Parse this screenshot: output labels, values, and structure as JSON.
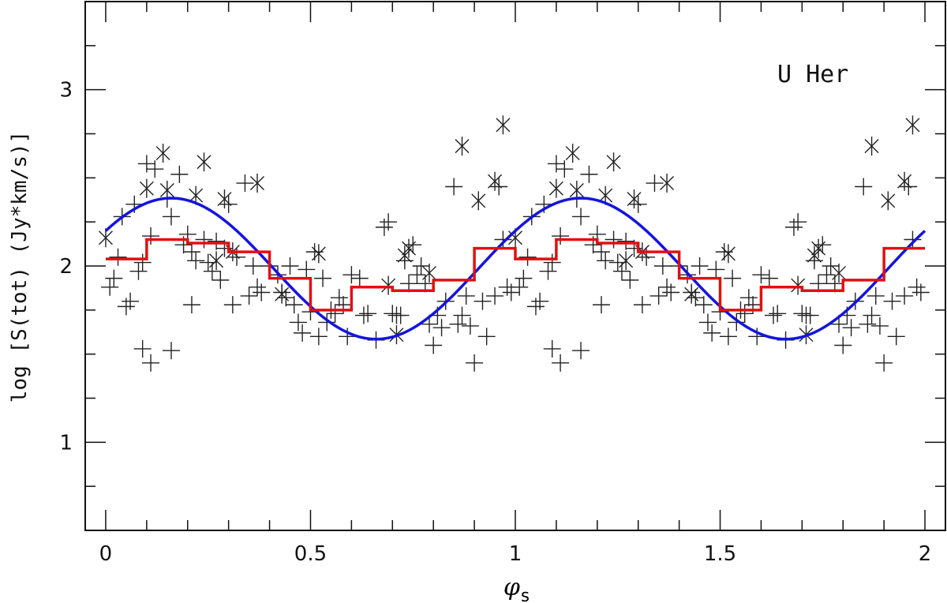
{
  "chart_data": {
    "type": "scatter",
    "title": "",
    "annotation": "U Her",
    "xlabel_symbol": "φ",
    "xlabel_sub": "s",
    "ylabel": "log [S(tot) (Jy*km/s)]",
    "xlim": [
      -0.05,
      2.05
    ],
    "ylim": [
      0.5,
      3.5
    ],
    "x_ticks": [
      0,
      0.5,
      1,
      1.5,
      2
    ],
    "x_tick_labels": [
      "0",
      "0.5",
      "1",
      "1.5",
      "2"
    ],
    "y_ticks": [
      1,
      2,
      3
    ],
    "y_tick_labels": [
      "1",
      "2",
      "3"
    ],
    "grid": false,
    "colors": {
      "points": "#222222",
      "sine": "#1414e0",
      "binned": "#e01010",
      "axes": "#111111"
    },
    "series": [
      {
        "marker": "plus",
        "points": [
          [
            0.01,
            1.88
          ],
          [
            0.02,
            1.93
          ],
          [
            0.03,
            2.05
          ],
          [
            0.04,
            2.28
          ],
          [
            0.05,
            1.77
          ],
          [
            0.06,
            1.8
          ],
          [
            0.07,
            2.35
          ],
          [
            0.08,
            1.97
          ],
          [
            0.09,
            2.02
          ],
          [
            0.1,
            2.58
          ],
          [
            0.11,
            2.17
          ],
          [
            0.12,
            2.55
          ],
          [
            0.15,
            2.38
          ],
          [
            0.16,
            2.28
          ],
          [
            0.18,
            2.52
          ],
          [
            0.19,
            2.12
          ],
          [
            0.2,
            2.18
          ],
          [
            0.21,
            2.08
          ],
          [
            0.22,
            2.03
          ],
          [
            0.24,
            2.15
          ],
          [
            0.25,
            2.02
          ],
          [
            0.26,
            1.97
          ],
          [
            0.27,
            2.14
          ],
          [
            0.28,
            1.92
          ],
          [
            0.29,
            2.1
          ],
          [
            0.3,
            2.35
          ],
          [
            0.32,
            2.05
          ],
          [
            0.35,
            1.83
          ],
          [
            0.36,
            2.0
          ],
          [
            0.37,
            1.88
          ],
          [
            0.4,
            2.0
          ],
          [
            0.42,
            1.95
          ],
          [
            0.44,
            1.82
          ],
          [
            0.46,
            1.78
          ],
          [
            0.47,
            1.68
          ],
          [
            0.48,
            1.62
          ],
          [
            0.49,
            1.98
          ],
          [
            0.5,
            1.74
          ],
          [
            0.51,
            2.08
          ],
          [
            0.52,
            1.6
          ],
          [
            0.54,
            1.68
          ],
          [
            0.55,
            1.75
          ],
          [
            0.56,
            1.73
          ],
          [
            0.57,
            1.82
          ],
          [
            0.58,
            1.78
          ],
          [
            0.59,
            1.6
          ],
          [
            0.6,
            1.95
          ],
          [
            0.62,
            1.93
          ],
          [
            0.64,
            1.73
          ],
          [
            0.66,
            1.58
          ],
          [
            0.68,
            2.22
          ],
          [
            0.69,
            2.25
          ],
          [
            0.7,
            1.73
          ],
          [
            0.71,
            1.72
          ],
          [
            0.72,
            1.72
          ],
          [
            0.73,
            2.03
          ],
          [
            0.75,
            2.12
          ],
          [
            0.76,
            1.95
          ],
          [
            0.77,
            2.0
          ],
          [
            0.78,
            1.9
          ],
          [
            0.79,
            1.67
          ],
          [
            0.8,
            1.55
          ],
          [
            0.81,
            1.72
          ],
          [
            0.83,
            1.8
          ],
          [
            0.85,
            2.45
          ],
          [
            0.86,
            1.67
          ],
          [
            0.87,
            1.72
          ],
          [
            0.88,
            1.83
          ],
          [
            0.89,
            1.66
          ],
          [
            0.9,
            1.45
          ],
          [
            0.92,
            1.8
          ],
          [
            0.93,
            1.6
          ],
          [
            0.95,
            1.83
          ],
          [
            0.97,
            2.15
          ],
          [
            0.98,
            1.88
          ],
          [
            0.99,
            1.85
          ],
          [
            1.01,
            1.88
          ],
          [
            1.02,
            1.93
          ],
          [
            1.03,
            2.05
          ],
          [
            1.04,
            2.28
          ],
          [
            1.05,
            1.77
          ],
          [
            1.06,
            1.8
          ],
          [
            1.07,
            2.35
          ],
          [
            1.08,
            1.97
          ],
          [
            1.09,
            2.02
          ],
          [
            1.1,
            2.58
          ],
          [
            1.11,
            2.17
          ],
          [
            1.12,
            2.55
          ],
          [
            1.15,
            2.38
          ],
          [
            1.16,
            2.28
          ],
          [
            1.18,
            2.52
          ],
          [
            1.19,
            2.12
          ],
          [
            1.2,
            2.18
          ],
          [
            1.21,
            2.08
          ],
          [
            1.22,
            2.03
          ],
          [
            1.24,
            2.15
          ],
          [
            1.25,
            2.02
          ],
          [
            1.26,
            1.97
          ],
          [
            1.27,
            2.14
          ],
          [
            1.28,
            1.92
          ],
          [
            1.29,
            2.1
          ],
          [
            1.3,
            2.35
          ],
          [
            1.32,
            2.05
          ],
          [
            1.35,
            1.83
          ],
          [
            1.36,
            2.0
          ],
          [
            1.37,
            1.88
          ],
          [
            1.4,
            2.0
          ],
          [
            1.42,
            1.95
          ],
          [
            1.44,
            1.82
          ],
          [
            1.46,
            1.78
          ],
          [
            1.47,
            1.68
          ],
          [
            1.48,
            1.62
          ],
          [
            1.49,
            1.98
          ],
          [
            1.5,
            1.74
          ],
          [
            1.51,
            2.08
          ],
          [
            1.52,
            1.6
          ],
          [
            1.54,
            1.68
          ],
          [
            1.55,
            1.75
          ],
          [
            1.56,
            1.73
          ],
          [
            1.57,
            1.82
          ],
          [
            1.58,
            1.78
          ],
          [
            1.59,
            1.6
          ],
          [
            1.6,
            1.95
          ],
          [
            1.62,
            1.93
          ],
          [
            1.64,
            1.73
          ],
          [
            1.66,
            1.58
          ],
          [
            1.68,
            2.22
          ],
          [
            1.69,
            2.25
          ],
          [
            1.7,
            1.73
          ],
          [
            1.71,
            1.72
          ],
          [
            1.72,
            1.72
          ],
          [
            1.73,
            2.03
          ],
          [
            1.75,
            2.12
          ],
          [
            1.76,
            1.95
          ],
          [
            1.77,
            2.0
          ],
          [
            1.78,
            1.9
          ],
          [
            1.79,
            1.67
          ],
          [
            1.8,
            1.55
          ],
          [
            1.81,
            1.72
          ],
          [
            1.83,
            1.8
          ],
          [
            1.85,
            2.45
          ],
          [
            1.86,
            1.67
          ],
          [
            1.87,
            1.72
          ],
          [
            1.88,
            1.83
          ],
          [
            1.89,
            1.66
          ],
          [
            1.9,
            1.45
          ],
          [
            1.92,
            1.8
          ],
          [
            1.93,
            1.6
          ],
          [
            1.95,
            1.83
          ],
          [
            1.97,
            2.15
          ],
          [
            1.98,
            1.88
          ],
          [
            1.99,
            1.85
          ],
          [
            0.09,
            1.53
          ],
          [
            0.11,
            1.45
          ],
          [
            0.16,
            1.52
          ],
          [
            0.21,
            1.78
          ],
          [
            0.31,
            1.78
          ],
          [
            0.34,
            2.47
          ],
          [
            0.38,
            1.85
          ],
          [
            0.43,
            1.85
          ],
          [
            0.45,
            2.0
          ],
          [
            0.53,
            1.93
          ],
          [
            0.63,
            1.72
          ],
          [
            0.74,
            1.9
          ],
          [
            0.82,
            1.65
          ],
          [
            0.96,
            2.45
          ],
          [
            1.09,
            1.53
          ],
          [
            1.11,
            1.45
          ],
          [
            1.16,
            1.52
          ],
          [
            1.21,
            1.78
          ],
          [
            1.31,
            1.78
          ],
          [
            1.34,
            2.47
          ],
          [
            1.38,
            1.85
          ],
          [
            1.43,
            1.85
          ],
          [
            1.45,
            2.0
          ],
          [
            1.53,
            1.93
          ],
          [
            1.63,
            1.72
          ],
          [
            1.74,
            1.9
          ],
          [
            1.82,
            1.65
          ],
          [
            1.96,
            2.45
          ]
        ]
      },
      {
        "marker": "asterisk",
        "points": [
          [
            0.0,
            2.16
          ],
          [
            0.1,
            2.44
          ],
          [
            0.14,
            2.64
          ],
          [
            0.15,
            2.43
          ],
          [
            0.22,
            2.4
          ],
          [
            0.24,
            2.59
          ],
          [
            0.27,
            2.03
          ],
          [
            0.29,
            2.38
          ],
          [
            0.31,
            2.08
          ],
          [
            0.37,
            2.47
          ],
          [
            0.43,
            1.84
          ],
          [
            0.52,
            2.07
          ],
          [
            0.69,
            1.89
          ],
          [
            0.71,
            1.61
          ],
          [
            0.73,
            2.06
          ],
          [
            0.74,
            2.1
          ],
          [
            0.79,
            1.96
          ],
          [
            0.87,
            2.68
          ],
          [
            0.91,
            2.37
          ],
          [
            0.95,
            2.48
          ],
          [
            0.97,
            2.8
          ],
          [
            1.0,
            2.16
          ],
          [
            1.1,
            2.44
          ],
          [
            1.14,
            2.64
          ],
          [
            1.15,
            2.43
          ],
          [
            1.22,
            2.4
          ],
          [
            1.24,
            2.59
          ],
          [
            1.27,
            2.03
          ],
          [
            1.29,
            2.38
          ],
          [
            1.31,
            2.08
          ],
          [
            1.37,
            2.47
          ],
          [
            1.43,
            1.84
          ],
          [
            1.52,
            2.07
          ],
          [
            1.69,
            1.89
          ],
          [
            1.71,
            1.61
          ],
          [
            1.73,
            2.06
          ],
          [
            1.74,
            2.1
          ],
          [
            1.79,
            1.96
          ],
          [
            1.87,
            2.68
          ],
          [
            1.91,
            2.37
          ],
          [
            1.95,
            2.48
          ],
          [
            1.97,
            2.8
          ]
        ]
      },
      {
        "type": "line",
        "model": "sine",
        "mean": 1.985,
        "amplitude": 0.4,
        "phase_of_max": 0.16,
        "x_range": [
          0,
          2
        ]
      },
      {
        "type": "step",
        "bins": [
          [
            0.0,
            0.1,
            2.04
          ],
          [
            0.1,
            0.2,
            2.15
          ],
          [
            0.2,
            0.3,
            2.13
          ],
          [
            0.3,
            0.4,
            2.08
          ],
          [
            0.4,
            0.5,
            1.93
          ],
          [
            0.5,
            0.6,
            1.75
          ],
          [
            0.6,
            0.7,
            1.88
          ],
          [
            0.7,
            0.8,
            1.86
          ],
          [
            0.8,
            0.9,
            1.92
          ],
          [
            0.9,
            1.0,
            2.1
          ],
          [
            1.0,
            1.1,
            2.04
          ],
          [
            1.1,
            1.2,
            2.15
          ],
          [
            1.2,
            1.3,
            2.13
          ],
          [
            1.3,
            1.4,
            2.08
          ],
          [
            1.4,
            1.5,
            1.93
          ],
          [
            1.5,
            1.6,
            1.75
          ],
          [
            1.6,
            1.7,
            1.88
          ],
          [
            1.7,
            1.8,
            1.86
          ],
          [
            1.8,
            1.9,
            1.92
          ],
          [
            1.9,
            2.0,
            2.1
          ]
        ]
      }
    ]
  }
}
